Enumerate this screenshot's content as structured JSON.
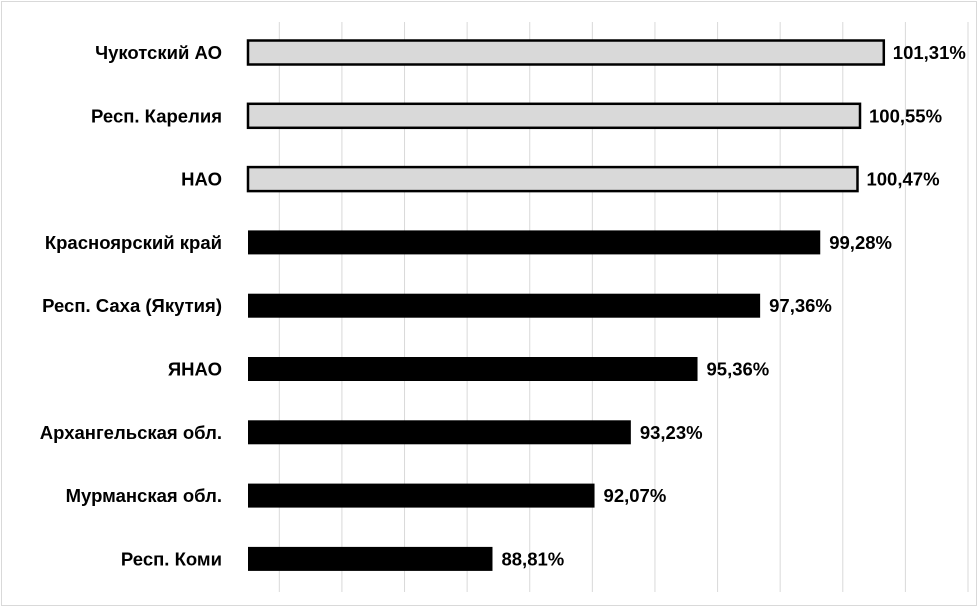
{
  "chart_data": {
    "type": "bar",
    "orientation": "horizontal",
    "categories": [
      "Чукотский АО",
      "Респ. Карелия",
      "НАО",
      "Красноярский край",
      "Респ. Саха (Якутия)",
      "ЯНАО",
      "Архангельская обл.",
      "Мурманская обл.",
      "Респ. Коми"
    ],
    "values": [
      101.31,
      100.55,
      100.47,
      99.28,
      97.36,
      95.36,
      93.23,
      92.07,
      88.81
    ],
    "data_labels": [
      "101,31%",
      "100,55%",
      "100,47%",
      "99,28%",
      "97,36%",
      "95,36%",
      "93,23%",
      "92,07%",
      "88,81%"
    ],
    "highlight_threshold": 100,
    "colors": {
      "above_100_fill": "#d9d9d9",
      "above_100_stroke": "#000000",
      "below_100_fill": "#000000",
      "gridline": "#d9d9d9"
    },
    "xlim": [
      81,
      104
    ],
    "grid": true,
    "legend": "none"
  }
}
